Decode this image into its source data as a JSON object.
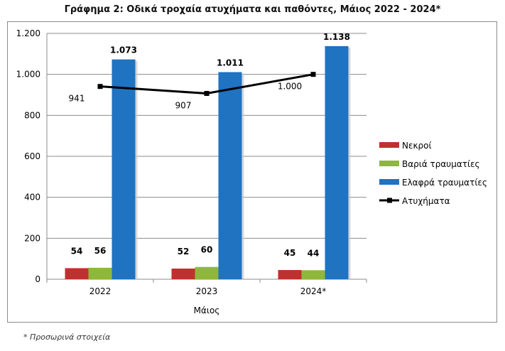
{
  "title": "Γράφημα 2: Οδικά τροχαία ατυχήματα και παθόντες, Μάιος 2022 - 2024*",
  "footnote": "* Προσωρινά στοιχεία",
  "colors": {
    "Νεκροί": "#c0302e",
    "Βαριά τραυματίες": "#8fb83a",
    "Ελαφρά τραυματίες": "#1f73c1",
    "Ατυχήματα": "#000000"
  },
  "chart_data": {
    "type": "bar",
    "title": "Γράφημα 2: Οδικά τροχαία ατυχήματα και παθόντες, Μάιος 2022 - 2024*",
    "xlabel": "Μάιος",
    "ylabel": "",
    "categories": [
      "2022",
      "2023",
      "2024*"
    ],
    "ylim": [
      0,
      1200
    ],
    "yticks": [
      0,
      200,
      400,
      600,
      800,
      1000,
      1200
    ],
    "ytick_labels": [
      "0",
      "200",
      "400",
      "600",
      "800",
      "1.000",
      "1.200"
    ],
    "grid": true,
    "legend_position": "right",
    "series": [
      {
        "name": "Νεκροί",
        "type": "bar",
        "values": [
          54,
          52,
          45
        ],
        "labels": [
          "54",
          "52",
          "45"
        ]
      },
      {
        "name": "Βαριά τραυματίες",
        "type": "bar",
        "values": [
          56,
          60,
          44
        ],
        "labels": [
          "56",
          "60",
          "44"
        ]
      },
      {
        "name": "Ελαφρά τραυματίες",
        "type": "bar",
        "values": [
          1073,
          1011,
          1138
        ],
        "labels": [
          "1.073",
          "1.011",
          "1.138"
        ]
      },
      {
        "name": "Ατυχήματα",
        "type": "line",
        "values": [
          941,
          907,
          1000
        ],
        "labels": [
          "941",
          "907",
          "1.000"
        ]
      }
    ]
  }
}
